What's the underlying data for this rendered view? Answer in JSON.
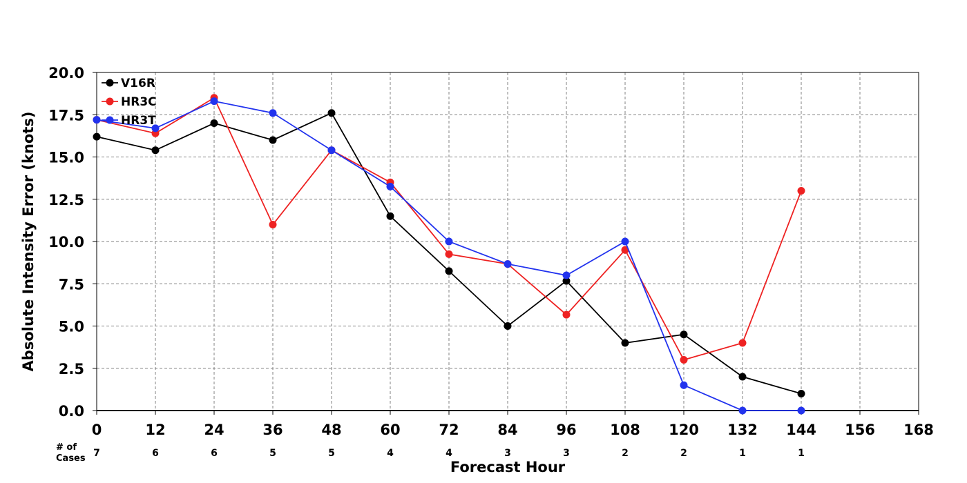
{
  "chart_data": {
    "type": "line",
    "title": "",
    "xlabel": "Forecast Hour",
    "ylabel": "Absolute Intensity Error (knots)",
    "xlim": [
      0,
      168
    ],
    "ylim": [
      0,
      20
    ],
    "x_ticks": [
      0,
      12,
      24,
      36,
      48,
      60,
      72,
      84,
      96,
      108,
      120,
      132,
      144,
      156,
      168
    ],
    "y_ticks": [
      "0.0",
      "2.5",
      "5.0",
      "7.5",
      "10.0",
      "12.5",
      "15.0",
      "17.5",
      "20.0"
    ],
    "grid": true,
    "legend_position": "top-left",
    "cases_title": [
      "# of",
      "Cases"
    ],
    "cases": [
      {
        "x": 0,
        "n": "7"
      },
      {
        "x": 12,
        "n": "6"
      },
      {
        "x": 24,
        "n": "6"
      },
      {
        "x": 36,
        "n": "5"
      },
      {
        "x": 48,
        "n": "5"
      },
      {
        "x": 60,
        "n": "4"
      },
      {
        "x": 72,
        "n": "4"
      },
      {
        "x": 84,
        "n": "3"
      },
      {
        "x": 96,
        "n": "3"
      },
      {
        "x": 108,
        "n": "2"
      },
      {
        "x": 120,
        "n": "2"
      },
      {
        "x": 132,
        "n": "1"
      },
      {
        "x": 144,
        "n": "1"
      }
    ],
    "x": [
      0,
      12,
      24,
      36,
      48,
      60,
      72,
      84,
      96,
      108,
      120,
      132,
      144
    ],
    "series": [
      {
        "name": "V16R",
        "color": "#000000",
        "values": [
          16.2,
          15.4,
          17.0,
          16.0,
          17.6,
          11.5,
          8.25,
          5.0,
          7.67,
          4.0,
          4.5,
          2.0,
          1.0
        ]
      },
      {
        "name": "HR3C",
        "color": "#ee2222",
        "values": [
          17.2,
          16.4,
          18.5,
          11.0,
          15.4,
          13.5,
          9.25,
          8.67,
          5.67,
          9.5,
          3.0,
          4.0,
          13.0
        ]
      },
      {
        "name": "HR3T",
        "color": "#2233ee",
        "values": [
          17.2,
          16.7,
          18.3,
          17.6,
          15.4,
          13.25,
          10.0,
          8.67,
          8.0,
          10.0,
          1.5,
          0.0,
          0.0
        ]
      }
    ]
  }
}
